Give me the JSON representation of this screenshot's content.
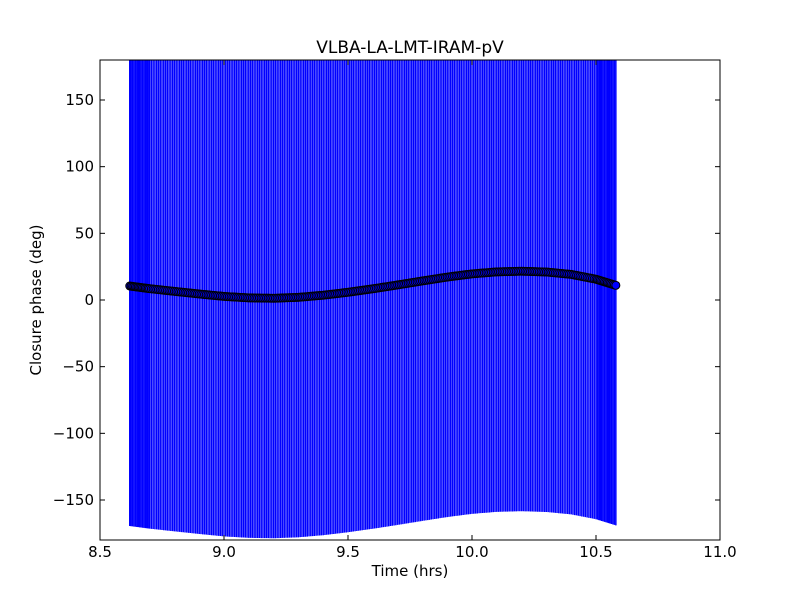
{
  "chart_data": {
    "type": "scatter",
    "title": "VLBA-LA-LMT-IRAM-pV",
    "xlabel": "Time (hrs)",
    "ylabel": "Closure phase (deg)",
    "xlim": [
      8.5,
      11.0
    ],
    "ylim": [
      -180,
      180
    ],
    "xticks": [
      8.5,
      9.0,
      9.5,
      10.0,
      10.5,
      11.0
    ],
    "xtick_labels": [
      "8.5",
      "9.0",
      "9.5",
      "10.0",
      "10.5",
      "11.0"
    ],
    "yticks": [
      150,
      100,
      50,
      0,
      -50,
      -100,
      -150
    ],
    "ytick_labels": [
      "150",
      "100",
      "50",
      "0",
      "−50",
      "−100",
      "−150"
    ],
    "grid": false,
    "colors": {
      "errorbar": "#0000ff",
      "marker_fill": "#0000ff",
      "marker_edge": "#000000"
    },
    "series": [
      {
        "x": [
          8.62,
          8.7,
          8.8,
          8.9,
          9.0,
          9.1,
          9.2,
          9.3,
          9.4,
          9.5,
          9.6,
          9.7,
          9.8,
          9.9,
          10.0,
          10.1,
          10.2,
          10.3,
          10.4,
          10.5,
          10.58
        ],
        "y": [
          10.5,
          8.5,
          6.5,
          4.5,
          2.7,
          1.6,
          1.3,
          2.0,
          3.6,
          5.8,
          8.4,
          11.3,
          14.3,
          17.2,
          19.6,
          21.1,
          21.6,
          21.0,
          19.2,
          15.6,
          11.0
        ],
        "yerr": 180
      }
    ]
  }
}
